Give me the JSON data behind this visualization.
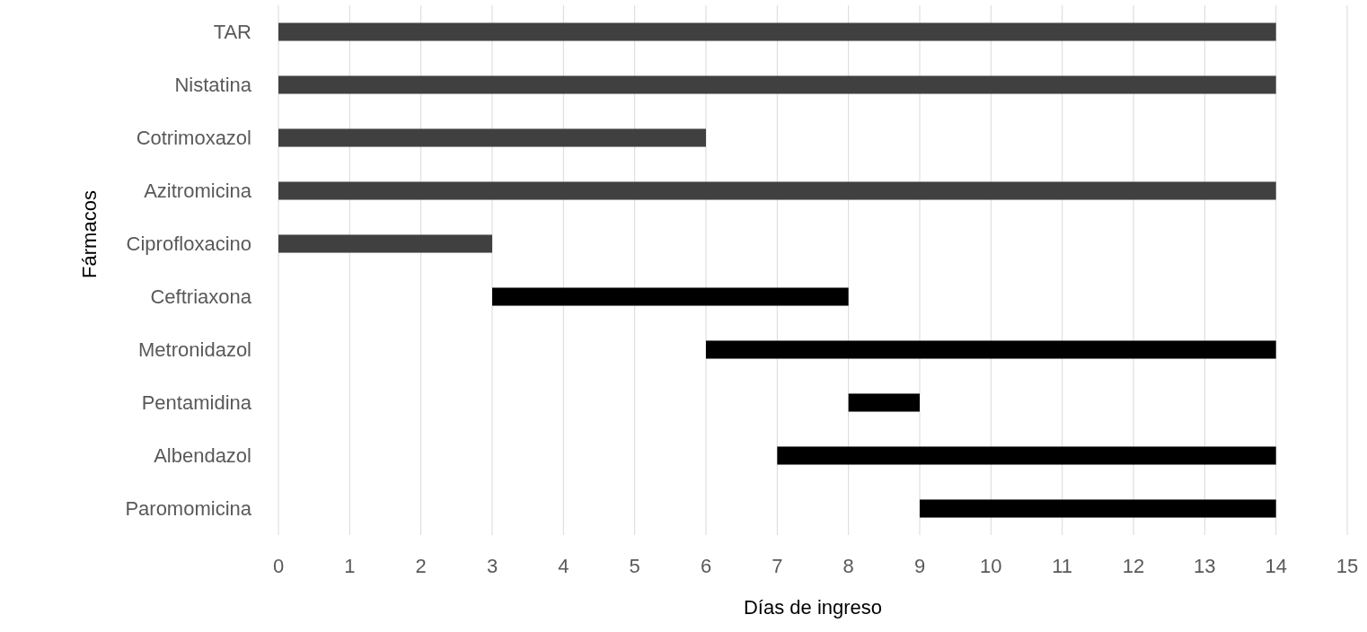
{
  "chart_data": {
    "type": "bar",
    "orientation": "horizontal",
    "xlabel": "Días de ingreso",
    "ylabel": "Fármacos",
    "categories": [
      "TAR",
      "Nistatina",
      "Cotrimoxazol",
      "Azitromicina",
      "Ciprofloxacino",
      "Ceftriaxona",
      "Metronidazol",
      "Pentamidina",
      "Albendazol",
      "Paromomicina"
    ],
    "base": [
      0,
      0,
      0,
      0,
      0,
      3,
      6,
      8,
      7,
      9
    ],
    "values": [
      14,
      14,
      6,
      14,
      3,
      5,
      8,
      1,
      7,
      5
    ],
    "colors": [
      "#404040",
      "#404040",
      "#404040",
      "#404040",
      "#404040",
      "#000000",
      "#000000",
      "#000000",
      "#000000",
      "#000000"
    ],
    "xlim": [
      0,
      15
    ],
    "xticks": [
      0,
      1,
      2,
      3,
      4,
      5,
      6,
      7,
      8,
      9,
      10,
      11,
      12,
      13,
      14,
      15
    ],
    "grid": "x"
  }
}
